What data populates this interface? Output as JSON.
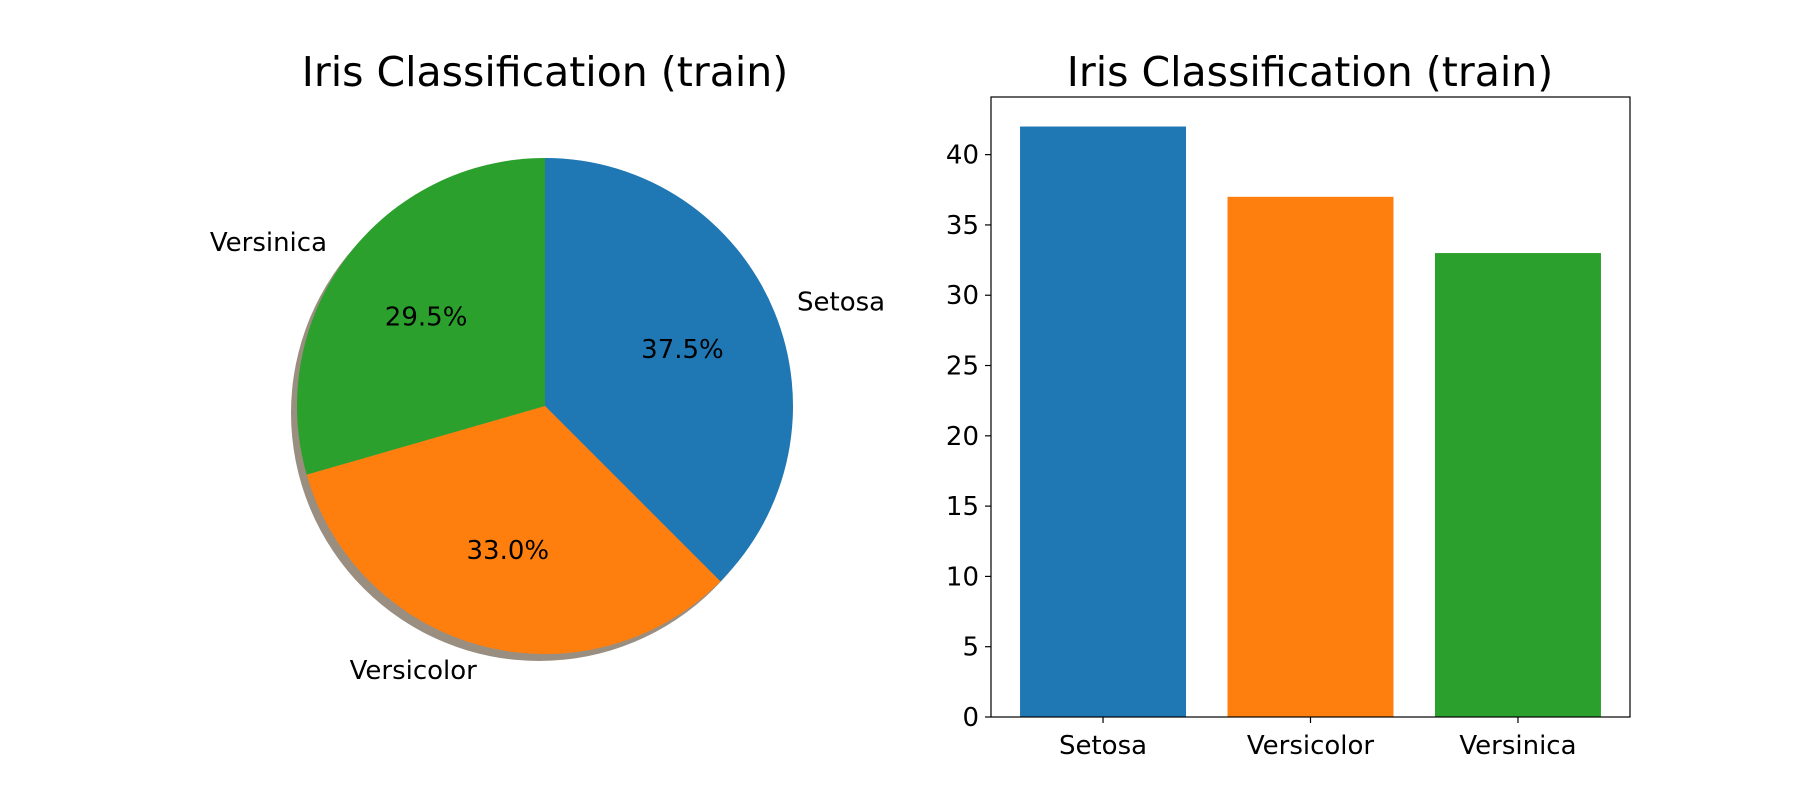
{
  "chart_data": [
    {
      "type": "pie",
      "title": "Iris Classification (train)",
      "labels": [
        "Setosa",
        "Versicolor",
        "Versinica"
      ],
      "values": [
        42,
        37,
        33
      ],
      "percent_labels": [
        "37.5%",
        "33.0%",
        "29.5%"
      ],
      "colors": [
        "#1f77b4",
        "#ff7f0e",
        "#2ca02c"
      ],
      "shadow": true,
      "start_angle_deg": 90,
      "direction": "clockwise"
    },
    {
      "type": "bar",
      "title": "Iris Classification (train)",
      "categories": [
        "Setosa",
        "Versicolor",
        "Versinica"
      ],
      "values": [
        42,
        37,
        33
      ],
      "colors": [
        "#1f77b4",
        "#ff7f0e",
        "#2ca02c"
      ],
      "ylim": [
        0,
        44.1
      ],
      "yticks": [
        0,
        5,
        10,
        15,
        20,
        25,
        30,
        35,
        40
      ],
      "grid": false
    }
  ]
}
